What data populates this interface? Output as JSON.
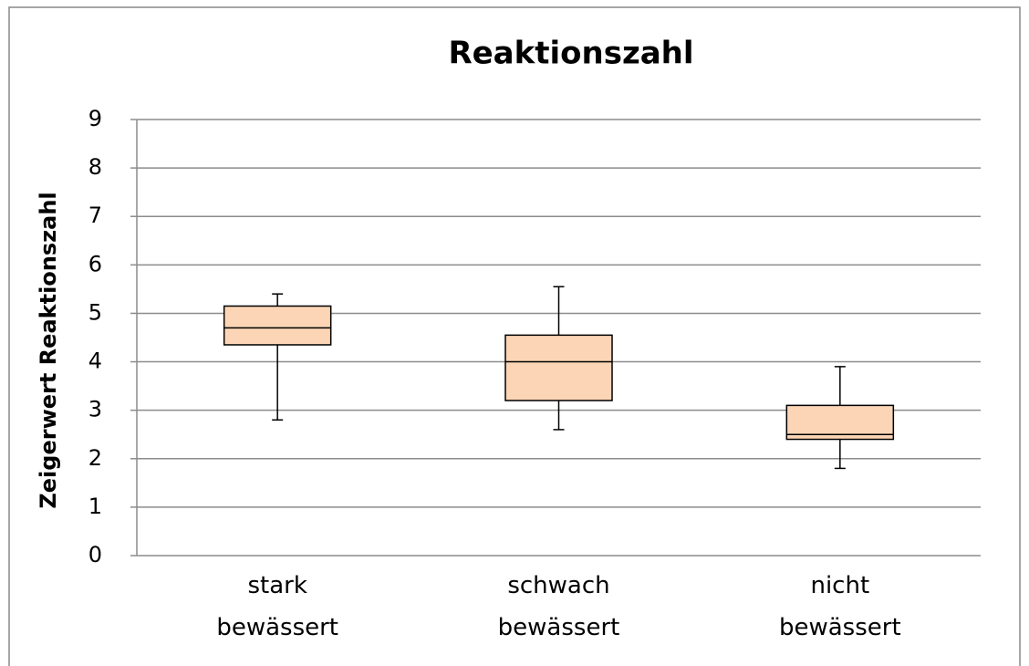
{
  "chart_data": {
    "type": "box",
    "title": "Reaktionszahl",
    "y_label": "Zeigerwert Reaktionszahl",
    "categories": [
      "stark bewässert",
      "schwach bewässert",
      "nicht bewässert"
    ],
    "boxes": [
      {
        "whislo": 2.8,
        "q1": 4.35,
        "median": 4.7,
        "q3": 5.15,
        "whishi": 5.4
      },
      {
        "whislo": 2.6,
        "q1": 3.2,
        "median": 4.0,
        "q3": 4.55,
        "whishi": 5.55
      },
      {
        "whislo": 1.8,
        "q1": 2.4,
        "median": 2.5,
        "q3": 3.1,
        "whishi": 3.9
      }
    ],
    "color": "#fbd5b5",
    "ylim": [
      0,
      9
    ],
    "yticks": [
      0,
      1,
      2,
      3,
      4,
      5,
      6,
      7,
      8,
      9
    ],
    "grid": true
  }
}
